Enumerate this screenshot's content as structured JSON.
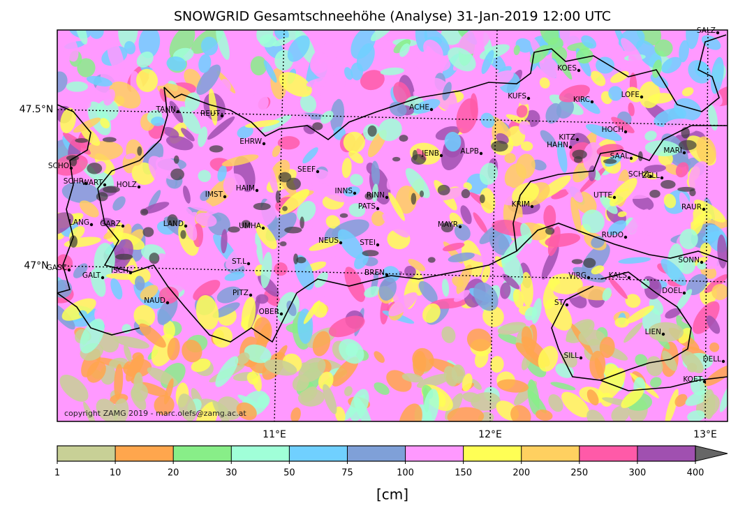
{
  "title": "SNOWGRID Gesamtschneehöhe (Analyse) 31-Jan-2019 12:00 UTC",
  "map": {
    "latitudes": [
      "47.5°N",
      "47°N"
    ],
    "longitudes": [
      "11°E",
      "12°E",
      "13°E"
    ],
    "stations": [
      "SALZ",
      "KOES",
      "KUFS",
      "KIRC",
      "LOFE",
      "ACHE",
      "TANN",
      "REUT",
      "HOCH",
      "KITZ",
      "HAHN",
      "EHRW",
      "JENB",
      "ALPB",
      "SAAL",
      "MARI",
      "SCHO",
      "SEEF",
      "SCHZ",
      "ZELL",
      "SCHR",
      "WART",
      "HOLZ",
      "HAIM",
      "INNS",
      "RINN",
      "IMST",
      "UTTE",
      "KRIM",
      "PATS",
      "RAUR",
      "LANG",
      "GARZ",
      "LAND",
      "UMHA",
      "MAYR",
      "RUDO",
      "NEUS",
      "STEI",
      "SONN",
      "ST.L",
      "GASC",
      "GALT",
      "ISCH",
      "BREN",
      "VIRG",
      "KALS",
      "DOEL",
      "PITZ",
      "NAUD",
      "ST.",
      "OBER",
      "LIEN",
      "SILL",
      "DELL",
      "KOET"
    ],
    "copyright": "copyright ZAMG 2019 - marc.olefs@zamg.ac.at"
  },
  "colorbar": {
    "ticks": [
      1,
      10,
      20,
      30,
      50,
      75,
      100,
      150,
      200,
      250,
      300,
      400
    ],
    "colors": [
      "#c8d096",
      "#ffa64d",
      "#88ee88",
      "#a0ffd8",
      "#70d0ff",
      "#7fa0d8",
      "#ff99ff",
      "#ffff55",
      "#ffd060",
      "#ff5aa8",
      "#a050b0"
    ],
    "extend_color": "#666666",
    "label": "[cm]"
  }
}
